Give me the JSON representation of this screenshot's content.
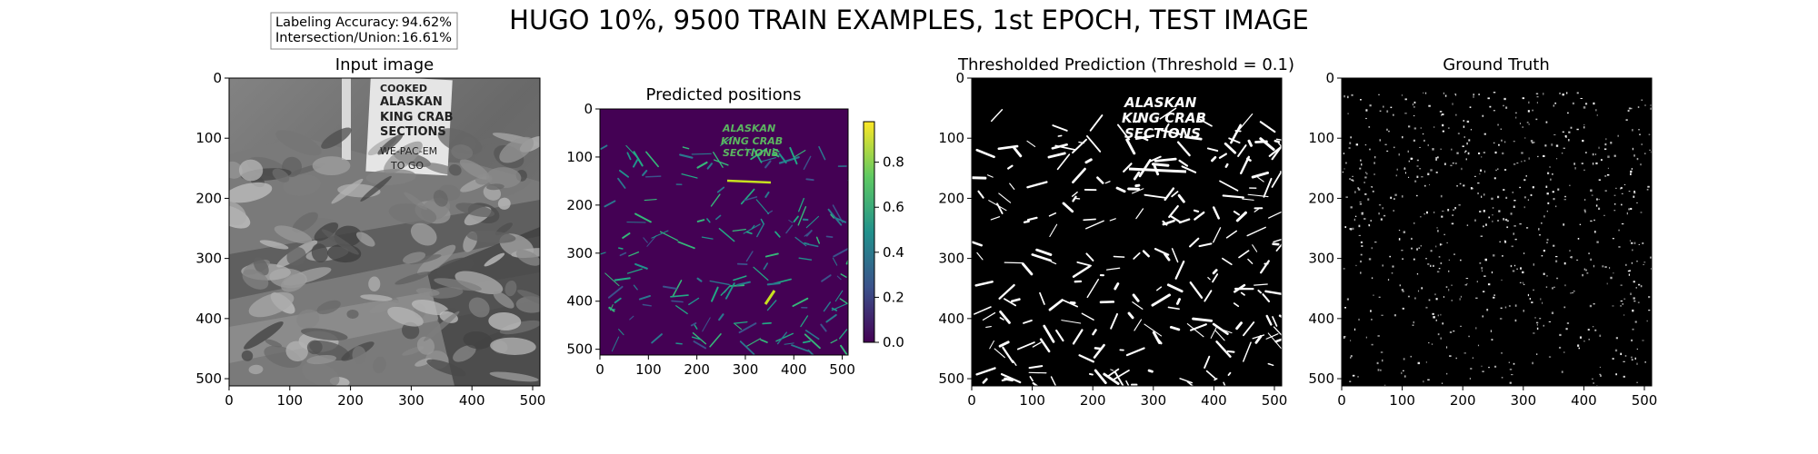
{
  "figure": {
    "suptitle": "HUGO 10%, 9500 TRAIN EXAMPLES, 1st EPOCH, TEST IMAGE",
    "metrics": {
      "accuracy_label": "Labeling Accuracy:",
      "accuracy_value": "94.62%",
      "iou_label": "Intersection/Union:",
      "iou_value": "16.61%"
    }
  },
  "sign_text": [
    "COOKED",
    "ALASKAN",
    "KING CRAB",
    "SECTIONS",
    "WE-PAC-EM",
    "TO GO"
  ],
  "pred_sign_text": [
    "ALASKAN",
    "KING CRAB",
    "SECTIONS"
  ],
  "colors": {
    "viridis_low": "#440154",
    "viridis_mid": "#21918c",
    "viridis_high": "#fde725"
  },
  "chart_data": [
    {
      "type": "heatmap",
      "title": "Input image",
      "colormap": "gray",
      "xlim": [
        0,
        512
      ],
      "ylim": [
        512,
        0
      ],
      "xticks": [
        0,
        100,
        200,
        300,
        400,
        500
      ],
      "yticks": [
        0,
        100,
        200,
        300,
        400,
        500
      ]
    },
    {
      "type": "heatmap",
      "title": "Predicted positions",
      "colormap": "viridis",
      "xlim": [
        0,
        512
      ],
      "ylim": [
        512,
        0
      ],
      "xticks": [
        0,
        100,
        200,
        300,
        400,
        500
      ],
      "yticks": [
        0,
        100,
        200,
        300,
        400,
        500
      ],
      "colorbar": {
        "range": [
          0,
          0.98
        ],
        "ticks": [
          0.0,
          0.2,
          0.4,
          0.6,
          0.8
        ],
        "tick_labels": [
          "0.0",
          "0.2",
          "0.4",
          "0.6",
          "0.8"
        ]
      }
    },
    {
      "type": "heatmap",
      "title": "Thresholded Prediction (Threshold = 0.1)",
      "colormap": "binary",
      "threshold": 0.1,
      "xlim": [
        0,
        512
      ],
      "ylim": [
        512,
        0
      ],
      "xticks": [
        0,
        100,
        200,
        300,
        400,
        500
      ],
      "yticks": [
        0,
        100,
        200,
        300,
        400,
        500
      ]
    },
    {
      "type": "heatmap",
      "title": "Ground Truth",
      "colormap": "binary",
      "xlim": [
        0,
        512
      ],
      "ylim": [
        512,
        0
      ],
      "xticks": [
        0,
        100,
        200,
        300,
        400,
        500
      ],
      "yticks": [
        0,
        100,
        200,
        300,
        400,
        500
      ]
    }
  ]
}
